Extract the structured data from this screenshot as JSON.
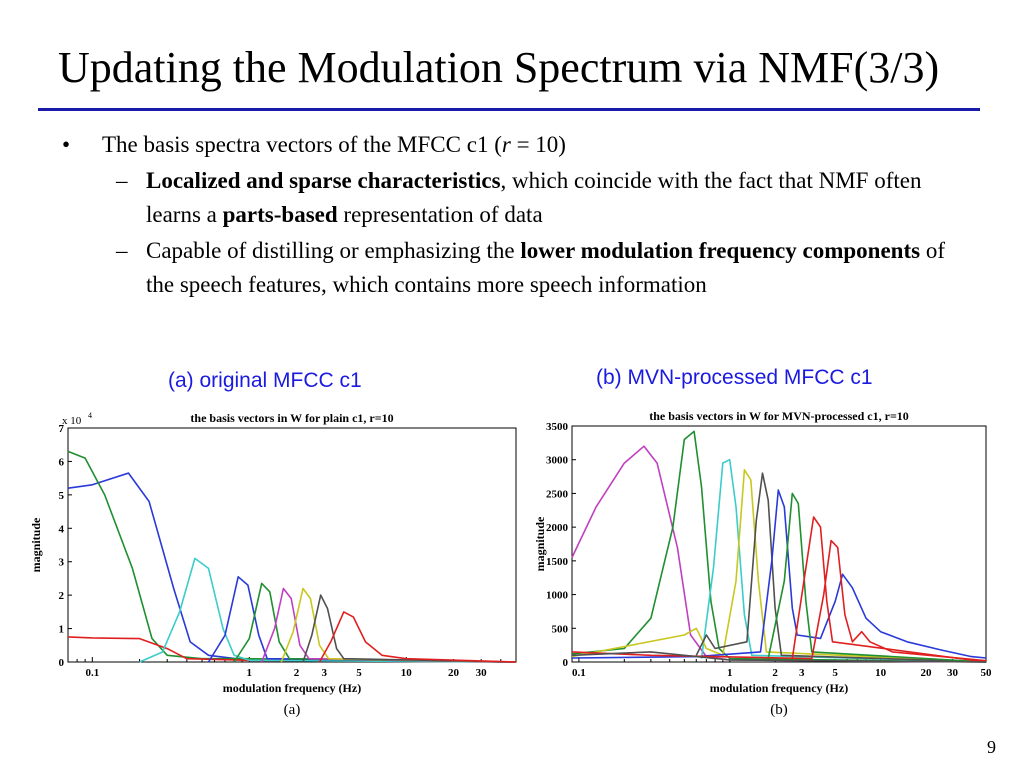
{
  "slide": {
    "title": "Updating the Modulation Spectrum via NMF(3/3)",
    "page_number": "9",
    "accent_color": "#1a1aa8",
    "caption_color": "#1a1ae0"
  },
  "bullets": {
    "main_mark": "•",
    "sub_mark": "–",
    "b1": {
      "text_before": "The basis spectra vectors of the MFCC c1 (",
      "r_symbol": "r",
      "text_after": " = 10)"
    },
    "s1": {
      "bold": "Localized and sparse characteristics",
      "text1": ", which coincide with the fact that NMF often learns a ",
      "bold2": "parts-based",
      "text2": " representation of data"
    },
    "s2": {
      "text1": "Capable of  distilling or emphasizing the ",
      "bold": "lower modulation frequency components",
      "text2": " of the speech features, which contains more speech information"
    }
  },
  "figures": {
    "a": {
      "caption": "(a) original MFCC c1",
      "sublabel": "(a)"
    },
    "b": {
      "caption": "(b) MVN-processed MFCC c1",
      "sublabel": "(b)"
    }
  },
  "chart_data": [
    {
      "type": "line",
      "title": "the basis vectors in W for plain c1, r=10",
      "xlabel": "modulation frequency (Hz)",
      "ylabel": "magnitude",
      "y_multiplier": "x 10",
      "y_multiplier_exp": "4",
      "x_scale": "log",
      "xlim": [
        0.07,
        50
      ],
      "ylim": [
        0,
        7
      ],
      "x_ticks": [
        0.1,
        1,
        2,
        3,
        5,
        10,
        20,
        30
      ],
      "y_ticks": [
        0,
        1,
        2,
        3,
        4,
        5,
        6,
        7
      ],
      "grid": false,
      "series": [
        {
          "color": "#2a3ad8",
          "points": [
            [
              0.07,
              5.2
            ],
            [
              0.1,
              5.3
            ],
            [
              0.17,
              5.65
            ],
            [
              0.23,
              4.8
            ],
            [
              0.33,
              2.2
            ],
            [
              0.42,
              0.6
            ],
            [
              0.55,
              0.2
            ],
            [
              1,
              0.05
            ],
            [
              5,
              0.05
            ],
            [
              50,
              0
            ]
          ]
        },
        {
          "color": "#1f8f2f",
          "points": [
            [
              0.07,
              6.3
            ],
            [
              0.09,
              6.1
            ],
            [
              0.12,
              5
            ],
            [
              0.18,
              2.8
            ],
            [
              0.24,
              0.7
            ],
            [
              0.3,
              0.2
            ],
            [
              0.5,
              0.1
            ],
            [
              1,
              0.1
            ],
            [
              50,
              0
            ]
          ]
        },
        {
          "color": "#e02020",
          "points": [
            [
              0.07,
              0.75
            ],
            [
              0.1,
              0.72
            ],
            [
              0.2,
              0.7
            ],
            [
              0.3,
              0.4
            ],
            [
              0.4,
              0.1
            ],
            [
              1,
              0.05
            ],
            [
              50,
              0
            ]
          ]
        },
        {
          "color": "#3ccccc",
          "points": [
            [
              0.2,
              0
            ],
            [
              0.28,
              0.3
            ],
            [
              0.36,
              1.5
            ],
            [
              0.45,
              3.1
            ],
            [
              0.55,
              2.8
            ],
            [
              0.68,
              1.0
            ],
            [
              0.8,
              0.2
            ],
            [
              1,
              0.05
            ],
            [
              50,
              0
            ]
          ]
        },
        {
          "color": "#2a3ad8",
          "points": [
            [
              0.55,
              0
            ],
            [
              0.7,
              0.8
            ],
            [
              0.85,
              2.55
            ],
            [
              0.98,
              2.3
            ],
            [
              1.15,
              0.8
            ],
            [
              1.3,
              0.1
            ],
            [
              50,
              0
            ]
          ]
        },
        {
          "color": "#1f8f2f",
          "points": [
            [
              0.8,
              0
            ],
            [
              1.0,
              0.7
            ],
            [
              1.2,
              2.35
            ],
            [
              1.35,
              2.1
            ],
            [
              1.55,
              0.6
            ],
            [
              1.8,
              0.1
            ],
            [
              50,
              0
            ]
          ]
        },
        {
          "color": "#c040c0",
          "points": [
            [
              1.2,
              0
            ],
            [
              1.45,
              1.0
            ],
            [
              1.65,
              2.2
            ],
            [
              1.85,
              1.9
            ],
            [
              2.1,
              0.5
            ],
            [
              2.4,
              0.1
            ],
            [
              50,
              0
            ]
          ]
        },
        {
          "color": "#c8c820",
          "points": [
            [
              1.6,
              0
            ],
            [
              1.9,
              0.9
            ],
            [
              2.2,
              2.2
            ],
            [
              2.45,
              1.9
            ],
            [
              2.8,
              0.5
            ],
            [
              3.2,
              0.1
            ],
            [
              50,
              0
            ]
          ]
        },
        {
          "color": "#505050",
          "points": [
            [
              2.2,
              0
            ],
            [
              2.5,
              0.8
            ],
            [
              2.85,
              2.0
            ],
            [
              3.15,
              1.6
            ],
            [
              3.6,
              0.4
            ],
            [
              4,
              0.1
            ],
            [
              50,
              0
            ]
          ]
        },
        {
          "color": "#e02020",
          "points": [
            [
              2.8,
              0
            ],
            [
              3.3,
              0.6
            ],
            [
              4,
              1.5
            ],
            [
              4.6,
              1.35
            ],
            [
              5.5,
              0.6
            ],
            [
              7,
              0.2
            ],
            [
              10,
              0.1
            ],
            [
              50,
              0
            ]
          ]
        }
      ]
    },
    {
      "type": "line",
      "title": "the basis vectors in W for MVN-processed c1, r=10",
      "xlabel": "modulation frequency (Hz)",
      "ylabel": "magnitude",
      "x_scale": "log",
      "xlim": [
        0.09,
        50
      ],
      "ylim": [
        0,
        3500
      ],
      "x_ticks": [
        0.1,
        1,
        2,
        3,
        5,
        10,
        20,
        30,
        50
      ],
      "y_ticks": [
        0,
        500,
        1000,
        1500,
        2000,
        2500,
        3000,
        3500
      ],
      "grid": false,
      "series": [
        {
          "color": "#c040c0",
          "points": [
            [
              0.09,
              1550
            ],
            [
              0.13,
              2300
            ],
            [
              0.2,
              2950
            ],
            [
              0.27,
              3200
            ],
            [
              0.33,
              2950
            ],
            [
              0.45,
              1700
            ],
            [
              0.55,
              400
            ],
            [
              0.7,
              80
            ],
            [
              1,
              30
            ],
            [
              50,
              0
            ]
          ]
        },
        {
          "color": "#1f8f2f",
          "points": [
            [
              0.09,
              120
            ],
            [
              0.2,
              200
            ],
            [
              0.3,
              650
            ],
            [
              0.42,
              2000
            ],
            [
              0.5,
              3300
            ],
            [
              0.58,
              3420
            ],
            [
              0.65,
              2600
            ],
            [
              0.75,
              900
            ],
            [
              0.85,
              200
            ],
            [
              1,
              50
            ],
            [
              50,
              0
            ]
          ]
        },
        {
          "color": "#3ccccc",
          "points": [
            [
              0.65,
              50
            ],
            [
              0.78,
              1400
            ],
            [
              0.9,
              2950
            ],
            [
              1.0,
              3000
            ],
            [
              1.1,
              2300
            ],
            [
              1.25,
              700
            ],
            [
              1.4,
              100
            ],
            [
              50,
              0
            ]
          ]
        },
        {
          "color": "#c8c820",
          "points": [
            [
              0.09,
              80
            ],
            [
              0.5,
              400
            ],
            [
              0.6,
              500
            ],
            [
              0.7,
              200
            ],
            [
              0.9,
              100
            ],
            [
              1.1,
              1200
            ],
            [
              1.25,
              2850
            ],
            [
              1.38,
              2700
            ],
            [
              1.55,
              1200
            ],
            [
              1.75,
              150
            ],
            [
              50,
              0
            ]
          ]
        },
        {
          "color": "#505050",
          "points": [
            [
              0.6,
              100
            ],
            [
              0.7,
              400
            ],
            [
              0.8,
              200
            ],
            [
              1.3,
              300
            ],
            [
              1.5,
              2100
            ],
            [
              1.65,
              2800
            ],
            [
              1.8,
              2400
            ],
            [
              2.0,
              800
            ],
            [
              2.2,
              100
            ],
            [
              50,
              0
            ]
          ]
        },
        {
          "color": "#2a3ad8",
          "points": [
            [
              0.09,
              60
            ],
            [
              0.6,
              80
            ],
            [
              1.6,
              150
            ],
            [
              1.9,
              1500
            ],
            [
              2.1,
              2550
            ],
            [
              2.3,
              2300
            ],
            [
              2.6,
              800
            ],
            [
              2.8,
              400
            ],
            [
              4,
              350
            ],
            [
              5,
              900
            ],
            [
              5.6,
              1300
            ],
            [
              6.5,
              1100
            ],
            [
              8,
              650
            ],
            [
              10,
              450
            ],
            [
              15,
              300
            ],
            [
              25,
              180
            ],
            [
              40,
              80
            ],
            [
              50,
              60
            ]
          ]
        },
        {
          "color": "#1f8f2f",
          "points": [
            [
              1.8,
              50
            ],
            [
              2.3,
              1200
            ],
            [
              2.6,
              2500
            ],
            [
              2.85,
              2350
            ],
            [
              3.2,
              900
            ],
            [
              3.5,
              150
            ],
            [
              50,
              0
            ]
          ]
        },
        {
          "color": "#e02020",
          "points": [
            [
              2.6,
              50
            ],
            [
              3.1,
              1200
            ],
            [
              3.6,
              2150
            ],
            [
              4.0,
              2000
            ],
            [
              4.4,
              900
            ],
            [
              4.8,
              300
            ],
            [
              50,
              0
            ]
          ]
        },
        {
          "color": "#e02020",
          "points": [
            [
              0.09,
              150
            ],
            [
              0.3,
              100
            ],
            [
              3.5,
              50
            ],
            [
              4.2,
              1000
            ],
            [
              4.7,
              1800
            ],
            [
              5.2,
              1700
            ],
            [
              5.8,
              700
            ],
            [
              6.5,
              300
            ],
            [
              7.5,
              450
            ],
            [
              8.5,
              300
            ],
            [
              12,
              150
            ],
            [
              50,
              20
            ]
          ]
        },
        {
          "color": "#505050",
          "points": [
            [
              0.09,
              100
            ],
            [
              0.3,
              150
            ],
            [
              0.6,
              80
            ],
            [
              1,
              30
            ],
            [
              50,
              0
            ]
          ]
        }
      ]
    }
  ]
}
